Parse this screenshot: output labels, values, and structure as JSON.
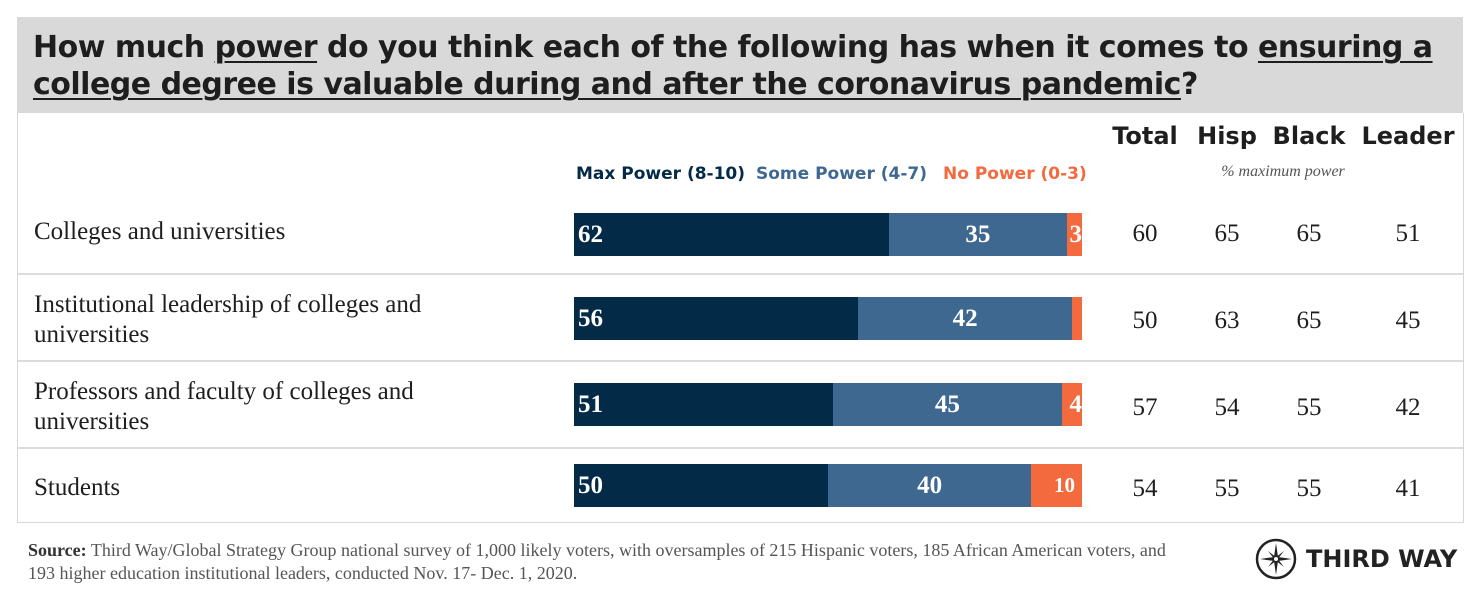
{
  "title": {
    "parts": [
      {
        "text": "How much ",
        "u": false
      },
      {
        "text": "power",
        "u": true
      },
      {
        "text": " do you think each of the following has when it comes to ",
        "u": false
      },
      {
        "text": "ensuring a college degree is valuable during and after the coronavirus pandemic",
        "u": true
      },
      {
        "text": "?",
        "u": false
      }
    ]
  },
  "colors": {
    "max": "#032b47",
    "some": "#3f6891",
    "none": "#f26a3d"
  },
  "chart_data": {
    "type": "bar",
    "stacked": true,
    "orientation": "horizontal",
    "legend": [
      "Max Power (8-10)",
      "Some Power (4-7)",
      "No Power (0-3)"
    ],
    "categories": [
      "Colleges and universities",
      "Institutional leadership of colleges and universities",
      "Professors and faculty of colleges and universities",
      "Students"
    ],
    "series": [
      {
        "name": "Max Power (8-10)",
        "values": [
          62,
          56,
          51,
          50
        ],
        "labels": [
          "62",
          "56",
          "51",
          "50"
        ]
      },
      {
        "name": "Some Power (4-7)",
        "values": [
          35,
          42,
          45,
          40
        ],
        "labels": [
          "35",
          "42",
          "45",
          "40"
        ]
      },
      {
        "name": "No Power (0-3)",
        "values": [
          3,
          2,
          4,
          10
        ],
        "labels": [
          "3",
          "",
          "4",
          "10"
        ]
      }
    ],
    "xlim": [
      0,
      100
    ]
  },
  "table": {
    "headers": [
      "Total",
      "Hisp",
      "Black",
      "Leader"
    ],
    "subheader": "% maximum power",
    "rows": [
      [
        "60",
        "65",
        "65",
        "51"
      ],
      [
        "50",
        "63",
        "65",
        "45"
      ],
      [
        "57",
        "54",
        "55",
        "42"
      ],
      [
        "54",
        "55",
        "55",
        "41"
      ]
    ]
  },
  "source": {
    "label": "Source:",
    "text": " Third Way/Global Strategy Group national survey of 1,000 likely voters, with oversamples of 215 Hispanic voters, 185 African American voters, and 193 higher education institutional leaders, conducted Nov. 17- Dec. 1, 2020."
  },
  "logo": "THIRD WAY"
}
